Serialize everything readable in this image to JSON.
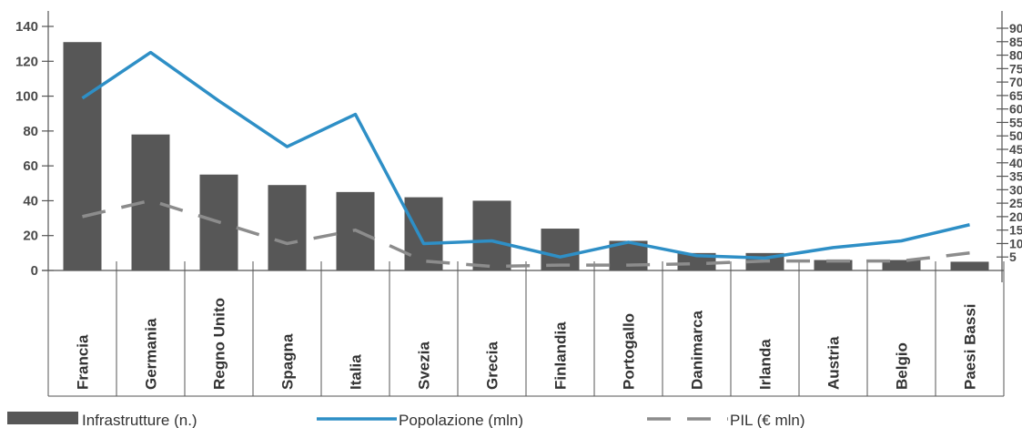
{
  "chart_data": {
    "type": "bar",
    "categories": [
      "Francia",
      "Germania",
      "Regno Unito",
      "Spagna",
      "Italia",
      "Svezia",
      "Grecia",
      "Finlandia",
      "Portogallo",
      "Danimarca",
      "Irlanda",
      "Austria",
      "Belgio",
      "Paesi Bassi"
    ],
    "series": [
      {
        "name": "Infrastrutture (n.)",
        "type": "bar",
        "axis": "left",
        "color": "#575757",
        "values": [
          131,
          78,
          55,
          49,
          45,
          42,
          40,
          24,
          17,
          10,
          10,
          6,
          6,
          5
        ]
      },
      {
        "name": "Popolazione (mln)",
        "type": "line",
        "axis": "right",
        "color": "#2e8fc6",
        "values": [
          64,
          81,
          63,
          46,
          58,
          10,
          11,
          5,
          10.5,
          5.5,
          4.6,
          8.5,
          11,
          17
        ]
      },
      {
        "name": "PIL (€ mln)",
        "type": "line",
        "dashed": true,
        "axis": "right",
        "color": "#8c8c8c",
        "values": [
          20,
          26,
          18,
          10,
          15,
          3.5,
          1.5,
          2,
          2,
          2.5,
          3.5,
          3.5,
          3.5,
          6.5
        ]
      }
    ],
    "left_axis": {
      "ticks": [
        "0",
        "20",
        "40",
        "60",
        "80",
        "100",
        "120",
        "140"
      ],
      "ylim": [
        0,
        140
      ]
    },
    "right_axis": {
      "ticks": [
        "5",
        "10",
        "15",
        "20",
        "25",
        "30",
        "35",
        "40",
        "45",
        "50",
        "55",
        "60",
        "65",
        "70",
        "75",
        "80",
        "85",
        "90"
      ],
      "ylim": [
        0,
        90
      ]
    },
    "legend_position": "bottom",
    "grid": false
  }
}
